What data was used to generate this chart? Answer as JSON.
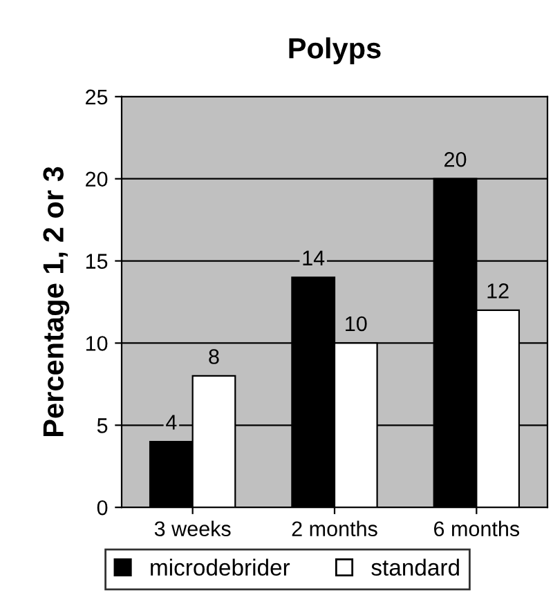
{
  "chart_data": {
    "type": "bar",
    "title": "Polyps",
    "ylabel": "Percentage 1, 2 or 3",
    "categories": [
      "3 weeks",
      "2 months",
      "6 months"
    ],
    "series": [
      {
        "name": "microdebrider",
        "color": "#000000",
        "values": [
          4,
          14,
          20
        ]
      },
      {
        "name": "standard",
        "color": "#ffffff",
        "values": [
          8,
          10,
          12
        ]
      }
    ],
    "ylim": [
      0,
      25
    ],
    "yticks": [
      0,
      5,
      10,
      15,
      20,
      25
    ],
    "grid": "y",
    "legend": "bottom",
    "data_labels": true
  }
}
